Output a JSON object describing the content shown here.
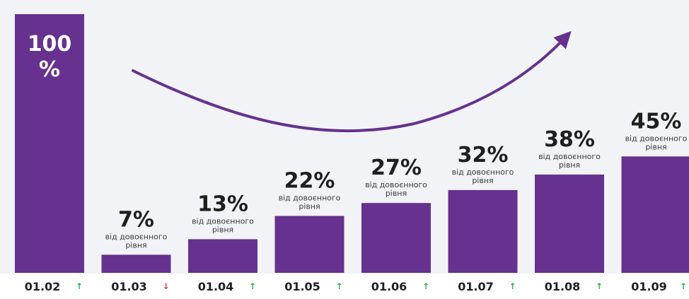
{
  "chart_data": {
    "type": "bar",
    "categories": [
      "01.02",
      "01.03",
      "01.04",
      "01.05",
      "01.06",
      "01.07",
      "01.08",
      "01.09"
    ],
    "values": [
      100,
      7,
      13,
      22,
      27,
      32,
      38,
      45
    ],
    "value_labels": [
      "100 %",
      "7%",
      "13%",
      "22%",
      "27%",
      "32%",
      "38%",
      "45%"
    ],
    "sub_labels": [
      "",
      "від довоєнного рівня",
      "від довоєнного рівня",
      "від довоєнного рівня",
      "від довоєнного рівня",
      "від довоєнного рівня",
      "від довоєнного рівня",
      "від довоєнного рівня"
    ],
    "trend_arrows": [
      "up",
      "down",
      "up",
      "up",
      "up",
      "up",
      "up",
      "up"
    ],
    "ylim": [
      0,
      100
    ],
    "title": "",
    "xlabel": "",
    "ylabel": "",
    "grid": false,
    "legend": "none",
    "colors": {
      "bar": "#66318f",
      "background": "#f1f3f6",
      "axis_band": "#ffffff",
      "trend_curve": "#66318f",
      "arrow_up": "#2cb34a",
      "arrow_down": "#e83b3b",
      "text": "#1f1f1f"
    }
  }
}
